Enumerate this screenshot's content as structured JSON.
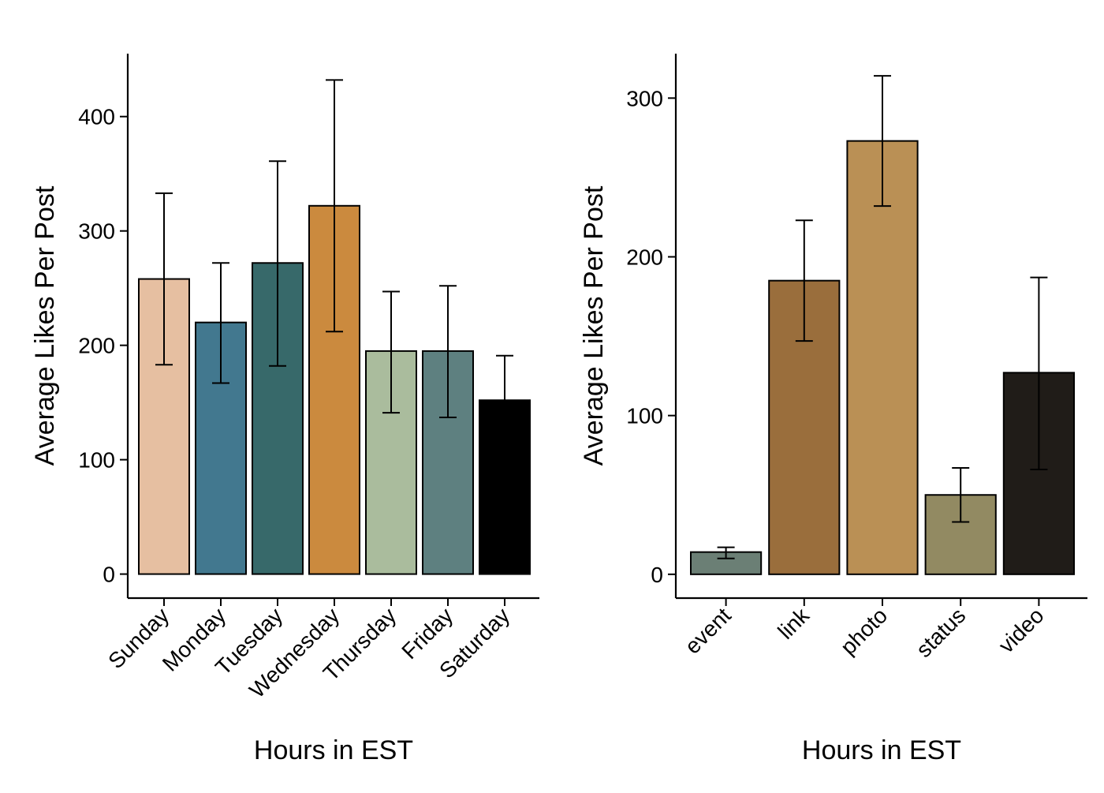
{
  "chart_data": [
    {
      "type": "bar",
      "title": "",
      "xlabel": "Hours in EST",
      "ylabel": "Average Likes Per Post",
      "ylim": [
        -21,
        455
      ],
      "yticks": [
        0,
        100,
        200,
        300,
        400
      ],
      "grid": false,
      "error_bars": true,
      "categories": [
        "Sunday",
        "Monday",
        "Tuesday",
        "Wednesday",
        "Thursday",
        "Friday",
        "Saturday"
      ],
      "values": [
        258,
        220,
        272,
        322,
        195,
        195,
        152
      ],
      "error_low": [
        183,
        167,
        182,
        212,
        141,
        137,
        115
      ],
      "error_high": [
        333,
        272,
        361,
        432,
        247,
        252,
        191
      ],
      "colors": [
        "#E6BFA1",
        "#42788F",
        "#37696A",
        "#CB8A3E",
        "#AABC9D",
        "#5E8080",
        "#000000"
      ]
    },
    {
      "type": "bar",
      "title": "",
      "xlabel": "Hours in EST",
      "ylabel": "Average Likes Per Post",
      "ylim": [
        -15,
        328
      ],
      "yticks": [
        0,
        100,
        200,
        300
      ],
      "grid": false,
      "error_bars": true,
      "categories": [
        "event",
        "link",
        "photo",
        "status",
        "video"
      ],
      "values": [
        14,
        185,
        273,
        50,
        127
      ],
      "error_low": [
        10,
        147,
        232,
        33,
        66
      ],
      "error_high": [
        17,
        223,
        314,
        67,
        187
      ],
      "colors": [
        "#6B7F75",
        "#9A6E3C",
        "#BA9055",
        "#928A62",
        "#201C18"
      ]
    }
  ]
}
